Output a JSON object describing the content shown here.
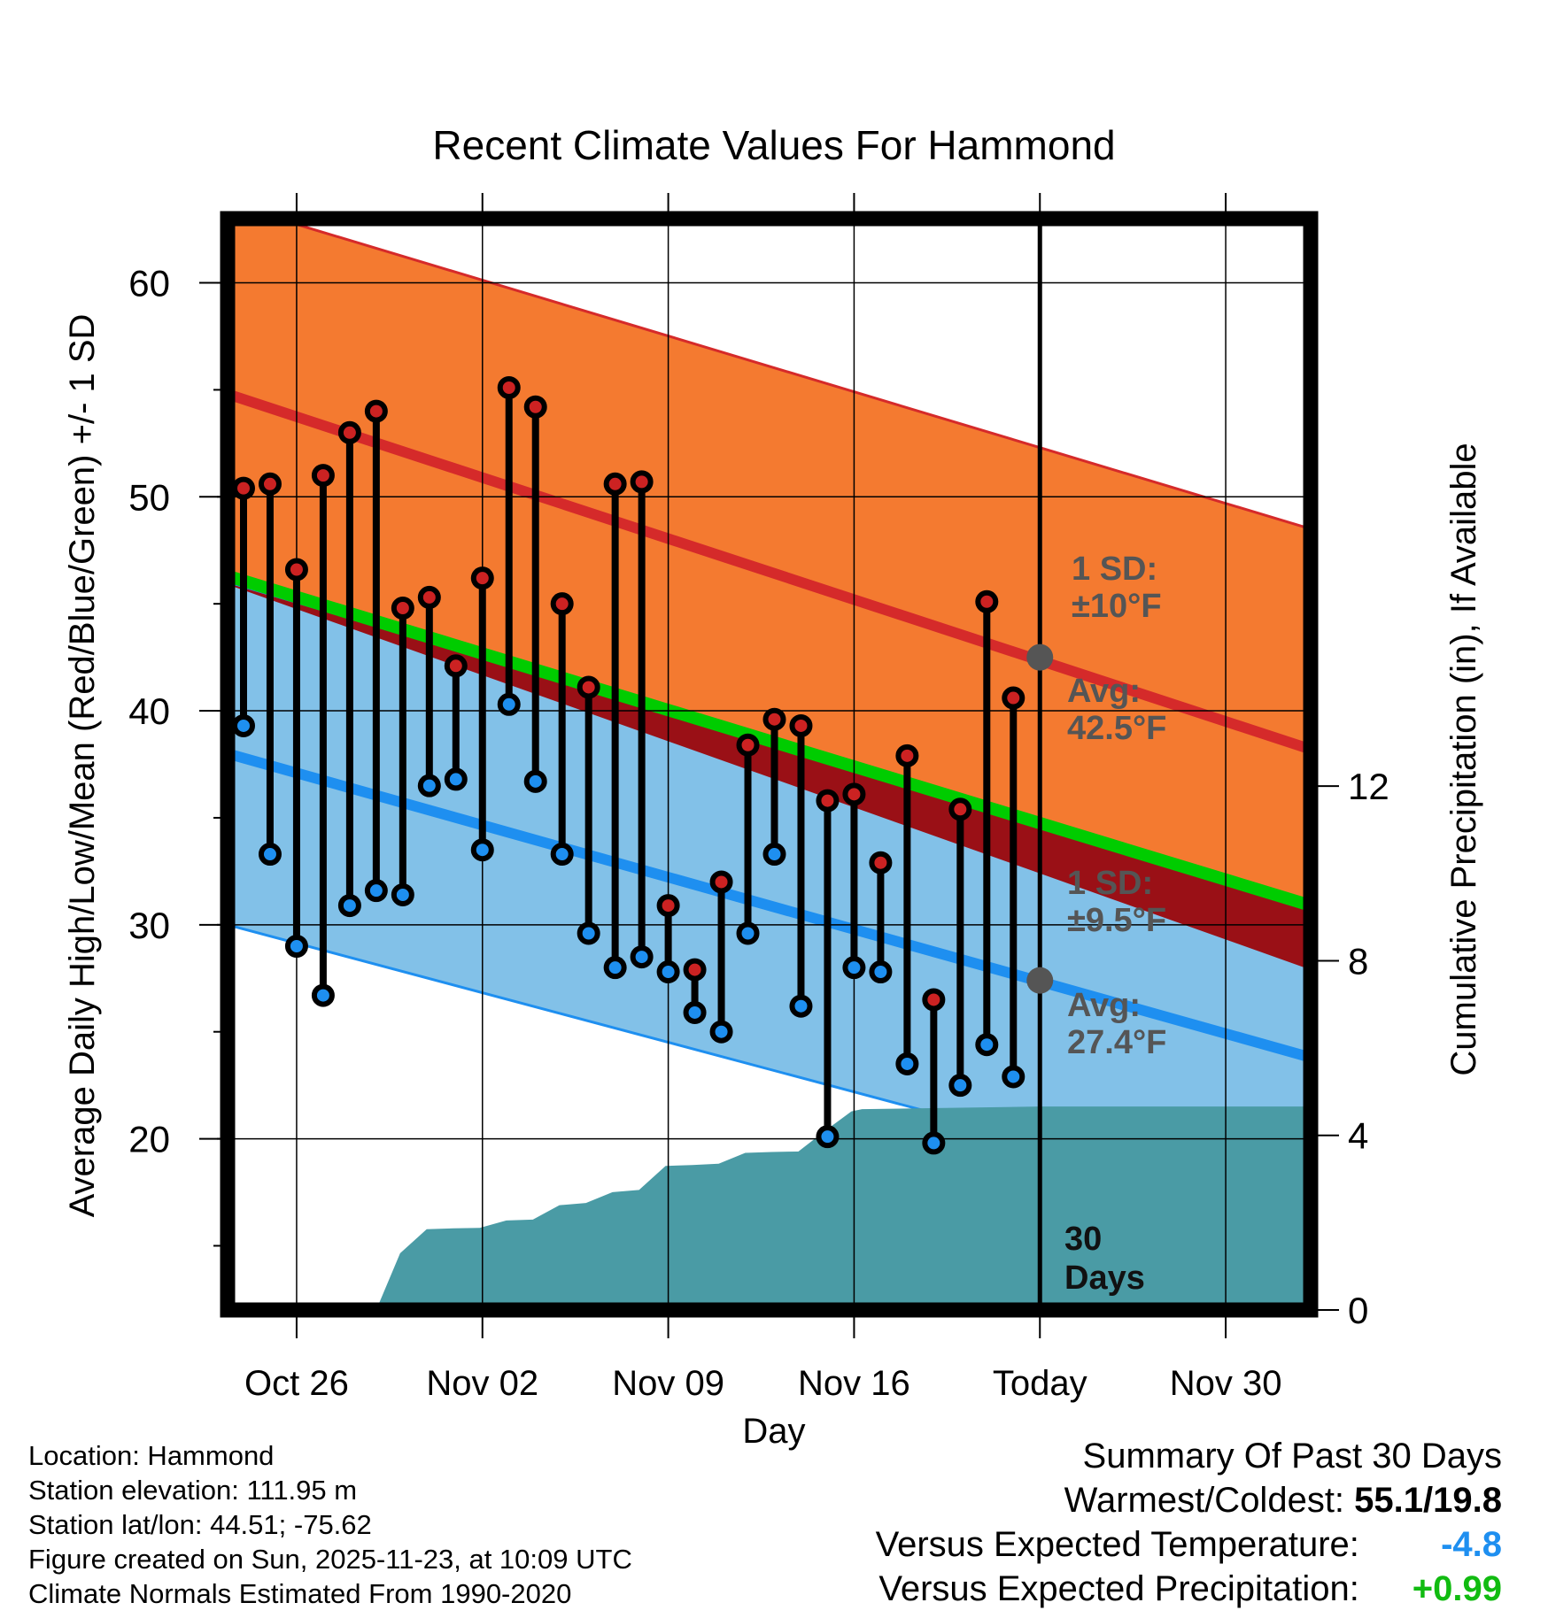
{
  "chart_data": {
    "type": "line",
    "title": "Recent Climate Values For Hammond",
    "xlabel": "Day",
    "ylabel_left": "Average Daily High/Low/Mean (Red/Blue/Green) +/- 1 SD",
    "ylabel_right": "Cumulative Precipitation (in), If Available",
    "ylim_left": [
      12,
      63
    ],
    "ylim_right": [
      0,
      25
    ],
    "yticks_left": [
      20,
      30,
      40,
      50,
      60
    ],
    "yticks_right": [
      0,
      4,
      8,
      12
    ],
    "x_ticks": [
      {
        "day": 3,
        "label": "Oct 26"
      },
      {
        "day": 10,
        "label": "Nov 02"
      },
      {
        "day": 17,
        "label": "Nov 09"
      },
      {
        "day": 24,
        "label": "Nov 16"
      },
      {
        "day": 31,
        "label": "Today"
      },
      {
        "day": 38,
        "label": "Nov 30"
      }
    ],
    "x_range": [
      0.4,
      41.2
    ],
    "today_day": 31,
    "normal_high": {
      "x": [
        0.4,
        41.2
      ],
      "mean": [
        54.8,
        38.2
      ],
      "upper": [
        63.7,
        48.5
      ]
    },
    "normal_low": {
      "x": [
        0.4,
        41.2
      ],
      "mean": [
        38.0,
        23.8
      ],
      "lower": [
        30.0,
        16.5
      ]
    },
    "normal_mean": {
      "x": [
        0.4,
        41.2
      ],
      "values": [
        46.3,
        30.9
      ]
    },
    "observed_days": [
      1,
      2,
      3,
      4,
      5,
      6,
      7,
      8,
      9,
      10,
      11,
      12,
      13,
      14,
      15,
      16,
      17,
      18,
      19,
      20,
      21,
      22,
      23,
      24,
      25,
      26,
      27,
      28,
      29,
      30
    ],
    "observed_high": [
      50.4,
      50.6,
      46.6,
      51.0,
      53.0,
      54.0,
      44.8,
      45.3,
      42.1,
      46.2,
      55.1,
      54.2,
      45.0,
      41.1,
      50.6,
      50.7,
      30.9,
      27.9,
      32.0,
      38.4,
      39.6,
      39.3,
      35.8,
      36.1,
      32.9,
      37.9,
      26.5,
      35.4,
      45.1,
      40.6
    ],
    "observed_low": [
      39.3,
      33.3,
      29.0,
      26.7,
      30.9,
      31.6,
      31.4,
      36.5,
      36.8,
      33.5,
      40.3,
      36.7,
      33.3,
      29.6,
      28.0,
      28.5,
      27.8,
      25.9,
      25.0,
      29.6,
      33.3,
      26.2,
      20.1,
      28.0,
      27.8,
      23.5,
      19.8,
      22.5,
      24.4,
      22.9
    ],
    "precip_days": [
      6.0,
      6.9,
      7.9,
      8.9,
      9.9,
      10.9,
      11.9,
      12.9,
      13.9,
      14.9,
      15.9,
      16.9,
      17.9,
      18.9,
      19.9,
      20.9,
      21.9,
      22.9,
      23.9,
      24.3,
      31.0,
      41.2
    ],
    "precip_cum": [
      0,
      1.3,
      1.85,
      1.87,
      1.88,
      2.05,
      2.07,
      2.4,
      2.45,
      2.7,
      2.75,
      3.3,
      3.32,
      3.35,
      3.6,
      3.62,
      3.63,
      4.1,
      4.55,
      4.6,
      4.66,
      4.66
    ],
    "annotations": {
      "high_sd_label": "1 SD:",
      "high_sd_value": "±10°F",
      "high_avg_label": "Avg:",
      "high_avg_value": "42.5°F",
      "low_sd_label": "1 SD:",
      "low_sd_value": "±9.5°F",
      "low_avg_label": "Avg:",
      "low_avg_value": "27.4°F",
      "days_number": "30",
      "days_word": "Days"
    },
    "today_high_avg": 42.5,
    "today_low_avg": 27.4,
    "colors": {
      "high_band": "#f47a30",
      "high_line": "#d52a2a",
      "low_band": "#82c1e8",
      "low_line": "#1e8ff0",
      "mean_line": "#00cc00",
      "overlap": "#9a1016",
      "precip": "#4a9ba5",
      "high_dot": "#cc2222",
      "low_dot": "#1e8ff0"
    }
  },
  "info": {
    "location": "Location: Hammond",
    "elevation": "Station elevation: 111.95 m",
    "latlon": "Station lat/lon: 44.51; -75.62",
    "created": "Figure created on Sun, 2025-11-23, at 10:09 UTC",
    "normals": "Climate Normals Estimated From 1990-2020"
  },
  "summary": {
    "title": "Summary Of Past 30 Days",
    "warmest_label": "Warmest/Coldest:",
    "warmest_value": "55.1/19.8",
    "temp_label": "Versus Expected Temperature:",
    "temp_value": "-4.8",
    "temp_color": "#1e8ff0",
    "precip_label": "Versus Expected Precipitation:",
    "precip_value": "+0.99",
    "precip_color": "#11bb11"
  }
}
